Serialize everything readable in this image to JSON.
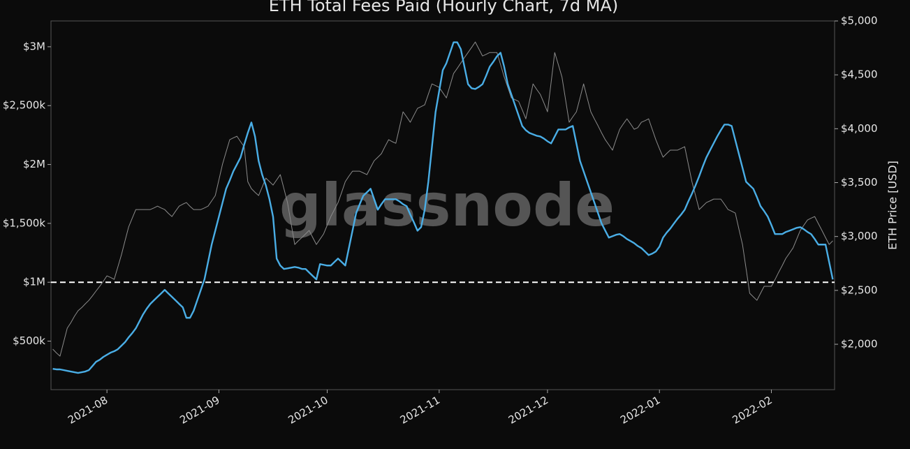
{
  "chart_data": {
    "type": "line",
    "title": "ETH Total Fees Paid (Hourly Chart, 7d MA)",
    "y2_label": "ETH Price [USD]",
    "watermark": "glassnode",
    "categories": [
      null,
      null,
      null,
      null,
      null,
      null,
      null,
      null,
      null,
      null,
      null,
      null,
      null,
      null,
      null,
      "2021-08",
      null,
      null,
      null,
      null,
      null,
      null,
      null,
      null,
      null,
      null,
      null,
      null,
      null,
      null,
      null,
      null,
      null,
      null,
      null,
      null,
      null,
      null,
      null,
      null,
      null,
      null,
      null,
      null,
      null,
      null,
      "2021-09",
      null,
      null,
      null,
      null,
      null,
      null,
      null,
      null,
      null,
      null,
      null,
      null,
      null,
      null,
      null,
      null,
      null,
      null,
      null,
      null,
      null,
      null,
      null,
      null,
      null,
      null,
      null,
      null,
      null,
      "2021-10",
      null,
      null,
      null,
      null,
      null,
      null,
      null,
      null,
      null,
      null,
      null,
      null,
      null,
      null,
      null,
      null,
      null,
      null,
      null,
      null,
      null,
      null,
      null,
      null,
      null,
      null,
      null,
      null,
      null,
      null,
      "2021-11",
      null,
      null,
      null,
      null,
      null,
      null,
      null,
      null,
      null,
      null,
      null,
      null,
      null,
      null,
      null,
      null,
      null,
      null,
      null,
      null,
      null,
      null,
      null,
      null,
      null,
      null,
      null,
      null,
      null,
      "2021-12",
      null,
      null,
      null,
      null,
      null,
      null,
      null,
      null,
      null,
      null,
      null,
      null,
      null,
      null,
      null,
      null,
      null,
      null,
      null,
      null,
      null,
      null,
      null,
      null,
      null,
      null,
      null,
      null,
      null,
      null,
      "2022-01",
      null,
      null,
      null,
      null,
      null,
      null,
      null,
      null,
      null,
      null,
      null,
      null,
      null,
      null,
      null,
      null,
      null,
      null,
      null,
      null,
      null,
      null,
      null,
      null,
      null,
      null,
      null,
      null,
      null,
      null,
      "2022-02",
      null,
      null,
      null,
      null,
      null,
      null,
      null,
      null,
      null,
      null,
      null,
      null,
      null,
      null,
      null,
      null,
      null
    ],
    "series": [
      {
        "color": "#8c8c8c",
        "axis": "y2",
        "values": [
          1955,
          1920,
          1890,
          2020,
          2149,
          2200,
          2260,
          2311,
          2340,
          2375,
          2408,
          2450,
          2495,
          2538,
          2585,
          2635,
          2620,
          2602,
          2715,
          2829,
          2960,
          3088,
          3170,
          3250,
          3250,
          3250,
          3250,
          3250,
          3265,
          3282,
          3265,
          3250,
          3215,
          3185,
          3235,
          3282,
          3300,
          3315,
          3280,
          3250,
          3250,
          3250,
          3265,
          3282,
          3330,
          3380,
          3525,
          3671,
          3785,
          3898,
          3915,
          3930,
          3880,
          3833,
          3509,
          3444,
          3410,
          3380,
          3460,
          3542,
          3510,
          3477,
          3525,
          3574,
          3445,
          3315,
          3120,
          2926,
          2960,
          2991,
          3024,
          3056,
          2990,
          2926,
          2975,
          3024,
          3105,
          3185,
          3250,
          3315,
          3410,
          3509,
          3560,
          3606,
          3606,
          3606,
          3590,
          3574,
          3640,
          3703,
          3735,
          3768,
          3835,
          3898,
          3880,
          3865,
          4010,
          4157,
          4110,
          4060,
          4125,
          4189,
          4205,
          4222,
          4320,
          4416,
          4400,
          4384,
          4335,
          4286,
          4400,
          4513,
          4560,
          4610,
          4660,
          4707,
          4755,
          4805,
          4740,
          4675,
          4690,
          4707,
          4707,
          4707,
          4595,
          4481,
          4385,
          4286,
          4270,
          4254,
          4175,
          4092,
          4255,
          4416,
          4365,
          4319,
          4240,
          4157,
          4430,
          4707,
          4595,
          4481,
          4270,
          4060,
          4110,
          4157,
          4285,
          4416,
          4285,
          4157,
          4090,
          4027,
          3960,
          3898,
          3850,
          3801,
          3900,
          3995,
          4045,
          4092,
          4045,
          3995,
          4010,
          4060,
          4075,
          4092,
          3995,
          3898,
          3815,
          3736,
          3770,
          3801,
          3801,
          3801,
          3817,
          3833,
          3670,
          3509,
          3380,
          3250,
          3282,
          3315,
          3330,
          3347,
          3347,
          3347,
          3300,
          3250,
          3235,
          3218,
          3070,
          2926,
          2700,
          2473,
          2440,
          2408,
          2473,
          2538,
          2538,
          2538,
          2600,
          2667,
          2730,
          2797,
          2845,
          2894,
          2975,
          3056,
          3105,
          3153,
          3170,
          3185,
          3120,
          3056,
          2990,
          2926,
          2960
        ]
      },
      {
        "color": "#4aaee6",
        "values": [
          265000,
          260000,
          260000,
          254000,
          248000,
          242000,
          236000,
          230000,
          236000,
          242000,
          254000,
          289000,
          325000,
          342000,
          366000,
          384000,
          402000,
          414000,
          431000,
          461000,
          491000,
          532000,
          568000,
          609000,
          668000,
          727000,
          775000,
          816000,
          846000,
          876000,
          905000,
          935000,
          905000,
          876000,
          846000,
          816000,
          787000,
          698000,
          698000,
          757000,
          846000,
          935000,
          1024000,
          1172000,
          1320000,
          1438000,
          1557000,
          1675000,
          1794000,
          1865000,
          1942000,
          2001000,
          2060000,
          2167000,
          2268000,
          2357000,
          2238000,
          2031000,
          1912000,
          1823000,
          1705000,
          1557000,
          1201000,
          1142000,
          1113000,
          1118000,
          1124000,
          1130000,
          1124000,
          1113000,
          1113000,
          1083000,
          1053000,
          1024000,
          1154000,
          1148000,
          1142000,
          1142000,
          1172000,
          1201000,
          1172000,
          1142000,
          1290000,
          1438000,
          1586000,
          1663000,
          1735000,
          1764000,
          1794000,
          1705000,
          1616000,
          1663000,
          1705000,
          1705000,
          1705000,
          1705000,
          1687000,
          1663000,
          1646000,
          1575000,
          1509000,
          1438000,
          1468000,
          1616000,
          1853000,
          2149000,
          2445000,
          2623000,
          2801000,
          2860000,
          2949000,
          3038000,
          3038000,
          2979000,
          2830000,
          2682000,
          2647000,
          2641000,
          2659000,
          2682000,
          2753000,
          2830000,
          2872000,
          2919000,
          2949000,
          2830000,
          2682000,
          2594000,
          2505000,
          2416000,
          2327000,
          2291000,
          2268000,
          2256000,
          2244000,
          2238000,
          2220000,
          2197000,
          2179000,
          2238000,
          2297000,
          2297000,
          2297000,
          2315000,
          2327000,
          2179000,
          2031000,
          1942000,
          1853000,
          1764000,
          1675000,
          1586000,
          1498000,
          1438000,
          1379000,
          1391000,
          1403000,
          1409000,
          1391000,
          1367000,
          1350000,
          1332000,
          1308000,
          1290000,
          1261000,
          1231000,
          1243000,
          1261000,
          1302000,
          1379000,
          1421000,
          1456000,
          1498000,
          1539000,
          1575000,
          1616000,
          1687000,
          1752000,
          1823000,
          1900000,
          1983000,
          2060000,
          2120000,
          2179000,
          2238000,
          2291000,
          2339000,
          2339000,
          2327000,
          2208000,
          2090000,
          1972000,
          1853000,
          1823000,
          1794000,
          1723000,
          1646000,
          1604000,
          1557000,
          1486000,
          1409000,
          1409000,
          1409000,
          1427000,
          1438000,
          1450000,
          1462000,
          1468000,
          1450000,
          1427000,
          1409000,
          1367000,
          1320000,
          1320000,
          1320000,
          1172000,
          1024000
        ]
      }
    ],
    "reference_line": 1000000,
    "ylim": [
      88000,
      3219000
    ],
    "yticks": [
      {
        "value": 500000,
        "label": "$500k"
      },
      {
        "value": 1000000,
        "label": "$1M"
      },
      {
        "value": 1500000,
        "label": "$1,500k"
      },
      {
        "value": 2000000,
        "label": "$2M"
      },
      {
        "value": 2500000,
        "label": "$2,500k"
      },
      {
        "value": 3000000,
        "label": "$3M"
      }
    ],
    "y2lim": [
      1579,
      5000
    ],
    "y2ticks": [
      {
        "value": 2000,
        "label": "$2,000"
      },
      {
        "value": 2500,
        "label": "$2,500"
      },
      {
        "value": 3000,
        "label": "$3,000"
      },
      {
        "value": 3500,
        "label": "$3,500"
      },
      {
        "value": 4000,
        "label": "$4,000"
      },
      {
        "value": 4500,
        "label": "$4,500"
      },
      {
        "value": 5000,
        "label": "$5,000"
      }
    ],
    "grid": false
  }
}
